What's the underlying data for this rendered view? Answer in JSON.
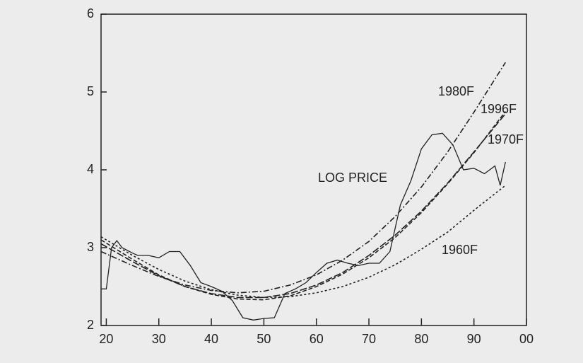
{
  "chart_data": {
    "type": "line",
    "xlim": [
      1919,
      2000
    ],
    "xticks": [
      {
        "value": 1920,
        "label": "20"
      },
      {
        "value": 1930,
        "label": "30"
      },
      {
        "value": 1940,
        "label": "40"
      },
      {
        "value": 1950,
        "label": "50"
      },
      {
        "value": 1960,
        "label": "60"
      },
      {
        "value": 1970,
        "label": "70"
      },
      {
        "value": 1980,
        "label": "80"
      },
      {
        "value": 1990,
        "label": "90"
      },
      {
        "value": 2000,
        "label": "00"
      }
    ],
    "ylim": [
      2,
      6
    ],
    "yticks": [
      2,
      3,
      4,
      5,
      6
    ],
    "series": [
      {
        "name": "LOG PRICE",
        "color": "#222222",
        "style": "solid",
        "x": [
          1919,
          1920,
          1921,
          1922,
          1923,
          1925,
          1926,
          1928,
          1930,
          1932,
          1934,
          1936,
          1938,
          1940,
          1942,
          1944,
          1946,
          1948,
          1950,
          1952,
          1954,
          1956,
          1958,
          1960,
          1962,
          1964,
          1966,
          1968,
          1970,
          1972,
          1974,
          1976,
          1978,
          1980,
          1982,
          1984,
          1986,
          1988,
          1990,
          1992,
          1994,
          1995,
          1996
        ],
        "values": [
          2.47,
          2.47,
          3.0,
          3.09,
          3.0,
          2.93,
          2.9,
          2.9,
          2.87,
          2.95,
          2.95,
          2.77,
          2.55,
          2.5,
          2.44,
          2.32,
          2.1,
          2.07,
          2.09,
          2.1,
          2.41,
          2.47,
          2.55,
          2.68,
          2.8,
          2.84,
          2.8,
          2.77,
          2.8,
          2.8,
          2.95,
          3.55,
          3.86,
          4.27,
          4.45,
          4.47,
          4.32,
          4.0,
          4.02,
          3.95,
          4.05,
          3.8,
          4.1
        ]
      },
      {
        "name": "1960F",
        "color": "#222222",
        "style": "dotted",
        "x": [
          1919,
          1925,
          1930,
          1935,
          1940,
          1945,
          1950,
          1955,
          1960,
          1965,
          1970,
          1975,
          1980,
          1985,
          1990,
          1996
        ],
        "values": [
          3.14,
          2.9,
          2.72,
          2.57,
          2.46,
          2.39,
          2.36,
          2.37,
          2.42,
          2.5,
          2.62,
          2.78,
          2.98,
          3.2,
          3.48,
          3.8
        ]
      },
      {
        "name": "1970F",
        "color": "#222222",
        "style": "dashed",
        "x": [
          1919,
          1925,
          1930,
          1935,
          1940,
          1945,
          1950,
          1955,
          1960,
          1965,
          1970,
          1975,
          1980,
          1985,
          1990,
          1996
        ],
        "values": [
          3.1,
          2.85,
          2.65,
          2.5,
          2.4,
          2.34,
          2.33,
          2.38,
          2.5,
          2.66,
          2.87,
          3.13,
          3.45,
          3.82,
          4.22,
          4.75
        ]
      },
      {
        "name": "1980F",
        "color": "#222222",
        "style": "dashdot",
        "x": [
          1919,
          1925,
          1930,
          1935,
          1940,
          1945,
          1950,
          1955,
          1960,
          1965,
          1970,
          1975,
          1980,
          1985,
          1990,
          1996
        ],
        "values": [
          2.95,
          2.77,
          2.63,
          2.52,
          2.45,
          2.42,
          2.44,
          2.52,
          2.65,
          2.84,
          3.08,
          3.4,
          3.78,
          4.23,
          4.74,
          5.38
        ]
      },
      {
        "name": "1996F",
        "color": "#222222",
        "style": "longdash",
        "x": [
          1919,
          1925,
          1930,
          1935,
          1940,
          1945,
          1950,
          1955,
          1960,
          1965,
          1970,
          1975,
          1980,
          1985,
          1990,
          1996
        ],
        "values": [
          3.05,
          2.82,
          2.64,
          2.5,
          2.41,
          2.36,
          2.36,
          2.41,
          2.52,
          2.68,
          2.9,
          3.16,
          3.47,
          3.83,
          4.23,
          4.72
        ]
      }
    ]
  }
}
